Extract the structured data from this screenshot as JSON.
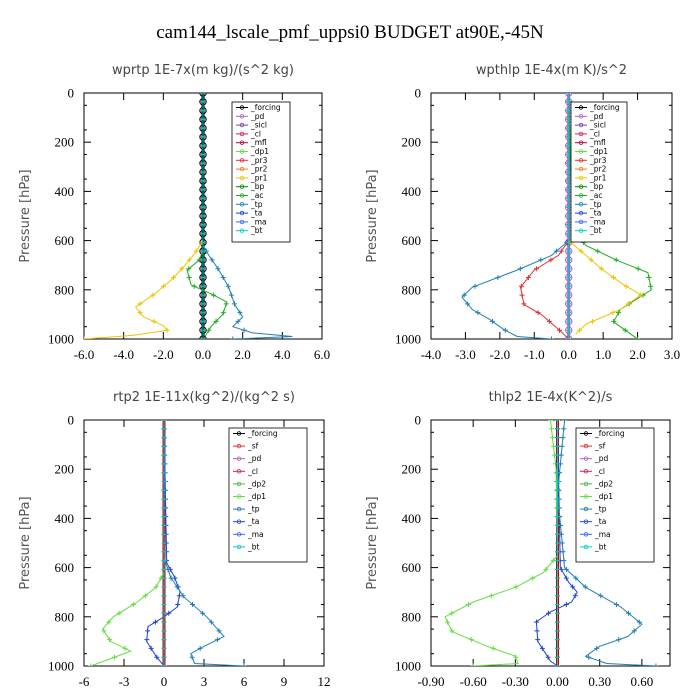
{
  "figure_title": "cam144_lscale_pmf_uppsi0  BUDGET at90E,-45N",
  "chart_data": [
    {
      "type": "line",
      "title": "wprtp  1E-7x(m kg)/(s^2 kg)",
      "ylabel": "Pressure [hPa]",
      "xlim": [
        -6,
        6
      ],
      "ylim": [
        1000,
        0
      ],
      "xticks": [
        "-6.0",
        "-4.0",
        "-2.0",
        "0.0",
        "2.0",
        "4.0",
        "6.0"
      ],
      "xtick_values": [
        -6,
        -4,
        -2,
        0,
        2,
        4,
        6
      ],
      "yticks": [
        "0",
        "200",
        "400",
        "600",
        "800",
        "1000"
      ],
      "ytick_values": [
        0,
        200,
        400,
        600,
        800,
        1000
      ],
      "legend": [
        "_forcing",
        "_pd",
        "_sicl",
        "_cl",
        "_mfl",
        "_dp1",
        "_pr3",
        "_pr2",
        "_pr1",
        "_bp",
        "_ac",
        "_tp",
        "_ta",
        "_ma",
        "_bt"
      ],
      "series": [
        {
          "name": "_forcing",
          "color": "#000000",
          "points": [
            [
              0,
              0
            ],
            [
              0,
              1000
            ]
          ]
        },
        {
          "name": "_pr1",
          "color": "#f2c200",
          "points": [
            [
              0,
              0
            ],
            [
              0,
              600
            ],
            [
              -0.4,
              650
            ],
            [
              -0.9,
              700
            ],
            [
              -1.6,
              760
            ],
            [
              -2.5,
              820
            ],
            [
              -3.4,
              870
            ],
            [
              -3.0,
              910
            ],
            [
              -2.0,
              945
            ],
            [
              -1.8,
              965
            ],
            [
              -3.5,
              985
            ],
            [
              -6,
              1000
            ]
          ]
        },
        {
          "name": "_ac",
          "color": "#22aa22",
          "points": [
            [
              0,
              0
            ],
            [
              0,
              640
            ],
            [
              -0.2,
              680
            ],
            [
              -0.8,
              720
            ],
            [
              -0.6,
              780
            ],
            [
              0.5,
              820
            ],
            [
              1.2,
              850
            ],
            [
              1.0,
              900
            ],
            [
              0.4,
              950
            ],
            [
              0.1,
              990
            ]
          ]
        },
        {
          "name": "_tp",
          "color": "#1f7fb5",
          "points": [
            [
              0,
              0
            ],
            [
              0,
              620
            ],
            [
              0.3,
              660
            ],
            [
              0.8,
              720
            ],
            [
              1.3,
              790
            ],
            [
              1.6,
              860
            ],
            [
              2.0,
              910
            ],
            [
              1.5,
              950
            ],
            [
              2.5,
              975
            ],
            [
              4.5,
              990
            ],
            [
              1.5,
              1000
            ]
          ]
        },
        {
          "name": "_bt",
          "color": "#00cccc",
          "points": [
            [
              0,
              0
            ],
            [
              0,
              1000
            ]
          ]
        }
      ]
    },
    {
      "type": "line",
      "title": "wpthlp  1E-4x(m K)/s^2",
      "ylabel": "Pressure [hPa]",
      "xlim": [
        -4,
        3
      ],
      "ylim": [
        1000,
        0
      ],
      "xticks": [
        "-4.0",
        "-3.0",
        "-2.0",
        "-1.0",
        "0.0",
        "1.0",
        "2.0",
        "3.0"
      ],
      "xtick_values": [
        -4,
        -3,
        -2,
        -1,
        0,
        1,
        2,
        3
      ],
      "yticks": [
        "0",
        "200",
        "400",
        "600",
        "800",
        "1000"
      ],
      "ytick_values": [
        0,
        200,
        400,
        600,
        800,
        1000
      ],
      "legend": [
        "_forcing",
        "_pd",
        "_sicl",
        "_cl",
        "_mfl",
        "_dp1",
        "_pr3",
        "_pr2",
        "_pr1",
        "_bp",
        "_ac",
        "_tp",
        "_ta",
        "_ma",
        "_bt"
      ],
      "series": [
        {
          "name": "_forcing",
          "color": "#b060c0",
          "points": [
            [
              0,
              0
            ],
            [
              0,
              1000
            ]
          ]
        },
        {
          "name": "_ac",
          "color": "#22aa22",
          "points": [
            [
              0,
              0
            ],
            [
              0.1,
              550
            ],
            [
              0.5,
              620
            ],
            [
              1.4,
              680
            ],
            [
              2.3,
              730
            ],
            [
              2.4,
              800
            ],
            [
              1.5,
              880
            ],
            [
              1.3,
              930
            ],
            [
              1.6,
              960
            ],
            [
              2.0,
              1000
            ]
          ]
        },
        {
          "name": "_pr1",
          "color": "#f2c200",
          "points": [
            [
              0,
              0
            ],
            [
              0,
              600
            ],
            [
              0.5,
              660
            ],
            [
              1.0,
              720
            ],
            [
              1.6,
              780
            ],
            [
              2.1,
              820
            ],
            [
              1.5,
              880
            ],
            [
              0.5,
              940
            ],
            [
              0.2,
              980
            ]
          ]
        },
        {
          "name": "_pr3",
          "color": "#e03030",
          "points": [
            [
              0,
              0
            ],
            [
              0,
              600
            ],
            [
              -0.3,
              660
            ],
            [
              -1.0,
              720
            ],
            [
              -1.4,
              790
            ],
            [
              -1.3,
              860
            ],
            [
              -0.8,
              900
            ],
            [
              -0.3,
              960
            ],
            [
              0,
              1000
            ]
          ]
        },
        {
          "name": "_tp",
          "color": "#1f7fb5",
          "points": [
            [
              0,
              0
            ],
            [
              0,
              600
            ],
            [
              -0.5,
              660
            ],
            [
              -1.5,
              720
            ],
            [
              -2.8,
              790
            ],
            [
              -3.1,
              830
            ],
            [
              -2.8,
              880
            ],
            [
              -2.3,
              920
            ],
            [
              -1.9,
              960
            ],
            [
              -1.5,
              990
            ],
            [
              -0.5,
              1000
            ]
          ]
        },
        {
          "name": "_bt",
          "color": "#00cccc",
          "points": [
            [
              0,
              0
            ],
            [
              0,
              1000
            ]
          ]
        }
      ]
    },
    {
      "type": "line",
      "title": "rtp2  1E-11x(kg^2)/(kg^2 s)",
      "ylabel": "Pressure [hPa]",
      "xlim": [
        -6,
        12
      ],
      "ylim": [
        1000,
        0
      ],
      "xticks": [
        "-6",
        "-3",
        "0",
        "3",
        "6",
        "9",
        "12"
      ],
      "xtick_values": [
        -6,
        -3,
        0,
        3,
        6,
        9,
        12
      ],
      "yticks": [
        "0",
        "200",
        "400",
        "600",
        "800",
        "1000"
      ],
      "ytick_values": [
        0,
        200,
        400,
        600,
        800,
        1000
      ],
      "legend": [
        "_forcing",
        "_sf",
        "_pd",
        "_cl",
        "_dp2",
        "_dp1",
        "_tp",
        "_ta",
        "_ma",
        "_bt"
      ],
      "series": [
        {
          "name": "_forcing",
          "color": "#cc0000",
          "points": [
            [
              0,
              0
            ],
            [
              0,
              1000
            ]
          ]
        },
        {
          "name": "_dp1",
          "color": "#66dd44",
          "points": [
            [
              0,
              0
            ],
            [
              0,
              620
            ],
            [
              -0.6,
              680
            ],
            [
              -2.0,
              740
            ],
            [
              -3.8,
              800
            ],
            [
              -4.6,
              850
            ],
            [
              -4.0,
              900
            ],
            [
              -2.5,
              940
            ],
            [
              -4.5,
              980
            ],
            [
              -5.5,
              1000
            ]
          ]
        },
        {
          "name": "_ta",
          "color": "#2244cc",
          "points": [
            [
              0,
              0
            ],
            [
              0.2,
              580
            ],
            [
              0.8,
              640
            ],
            [
              1.2,
              700
            ],
            [
              1.0,
              760
            ],
            [
              0,
              800
            ],
            [
              -1.2,
              840
            ],
            [
              -1.3,
              900
            ],
            [
              -0.6,
              960
            ],
            [
              0,
              1000
            ]
          ]
        },
        {
          "name": "_tp",
          "color": "#1f7fb5",
          "points": [
            [
              0,
              0
            ],
            [
              0,
              560
            ],
            [
              0.5,
              640
            ],
            [
              1.5,
              720
            ],
            [
              3.2,
              800
            ],
            [
              4.5,
              880
            ],
            [
              3.0,
              920
            ],
            [
              2.0,
              950
            ],
            [
              2.3,
              990
            ],
            [
              6,
              1000
            ]
          ]
        },
        {
          "name": "_bt",
          "color": "#00cccc",
          "points": [
            [
              0,
              0
            ],
            [
              0,
              1000
            ]
          ]
        }
      ]
    },
    {
      "type": "line",
      "title": "thlp2  1E-4x(K^2)/s",
      "ylabel": "Pressure [hPa]",
      "xlim": [
        -0.9,
        0.8
      ],
      "ylim": [
        1000,
        0
      ],
      "xticks": [
        "-0.90",
        "-0.60",
        "-0.30",
        "0.00",
        "0.30",
        "0.60"
      ],
      "xtick_values": [
        -0.9,
        -0.6,
        -0.3,
        0.0,
        0.3,
        0.6
      ],
      "yticks": [
        "0",
        "200",
        "400",
        "600",
        "800",
        "1000"
      ],
      "ytick_values": [
        0,
        200,
        400,
        600,
        800,
        1000
      ],
      "legend": [
        "_forcing",
        "_sf",
        "_pd",
        "_cl",
        "_dp2",
        "_dp1",
        "_tp",
        "_ta",
        "_ma",
        "_bt"
      ],
      "series": [
        {
          "name": "_forcing",
          "color": "#cc0000",
          "points": [
            [
              0,
              0
            ],
            [
              0,
              1000
            ]
          ]
        },
        {
          "name": "_dp1",
          "color": "#66dd44",
          "points": [
            [
              -0.05,
              0
            ],
            [
              -0.01,
              200
            ],
            [
              0,
              550
            ],
            [
              -0.1,
              620
            ],
            [
              -0.3,
              680
            ],
            [
              -0.6,
              740
            ],
            [
              -0.8,
              800
            ],
            [
              -0.75,
              860
            ],
            [
              -0.5,
              920
            ],
            [
              -0.3,
              960
            ],
            [
              -0.28,
              990
            ],
            [
              -0.6,
              1000
            ]
          ]
        },
        {
          "name": "_ta",
          "color": "#2244cc",
          "points": [
            [
              0,
              0
            ],
            [
              0.02,
              600
            ],
            [
              0.08,
              660
            ],
            [
              0.14,
              700
            ],
            [
              0.1,
              740
            ],
            [
              -0.05,
              780
            ],
            [
              -0.15,
              820
            ],
            [
              -0.14,
              900
            ],
            [
              -0.05,
              980
            ],
            [
              0,
              1000
            ]
          ]
        },
        {
          "name": "_tp",
          "color": "#1f7fb5",
          "points": [
            [
              0.05,
              0
            ],
            [
              0,
              300
            ],
            [
              0.05,
              600
            ],
            [
              0.2,
              680
            ],
            [
              0.45,
              760
            ],
            [
              0.6,
              830
            ],
            [
              0.5,
              880
            ],
            [
              0.3,
              920
            ],
            [
              0.2,
              960
            ],
            [
              0.35,
              990
            ],
            [
              0.7,
              1000
            ]
          ]
        },
        {
          "name": "_bt",
          "color": "#00cccc",
          "points": [
            [
              0,
              0
            ],
            [
              0,
              1000
            ]
          ]
        }
      ]
    }
  ]
}
